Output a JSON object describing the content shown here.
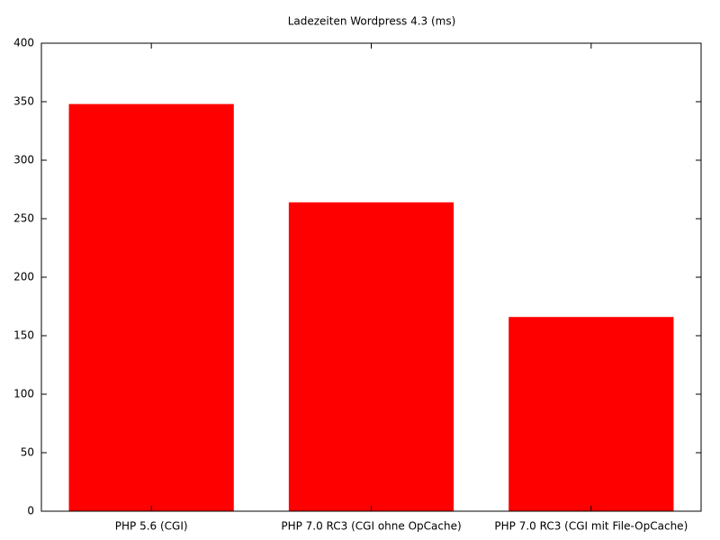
{
  "chart_data": {
    "type": "bar",
    "title": "Ladezeiten Wordpress 4.3 (ms)",
    "categories": [
      "PHP 5.6 (CGI)",
      "PHP 7.0 RC3 (CGI ohne OpCache)",
      "PHP 7.0 RC3 (CGI mit File-OpCache)"
    ],
    "values": [
      348,
      264,
      166
    ],
    "color": "#ff0000",
    "ylim": [
      0,
      400
    ],
    "yticks": [
      0,
      50,
      100,
      150,
      200,
      250,
      300,
      350,
      400
    ],
    "grid": false
  }
}
